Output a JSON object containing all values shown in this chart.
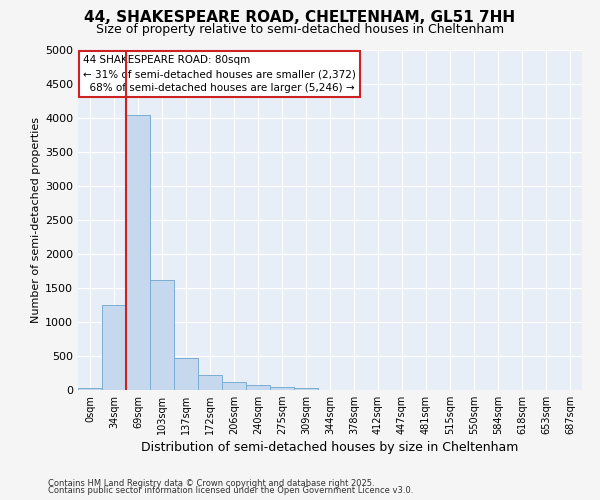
{
  "title_line1": "44, SHAKESPEARE ROAD, CHELTENHAM, GL51 7HH",
  "title_line2": "Size of property relative to semi-detached houses in Cheltenham",
  "xlabel": "Distribution of semi-detached houses by size in Cheltenham",
  "ylabel": "Number of semi-detached properties",
  "bar_labels": [
    "0sqm",
    "34sqm",
    "69sqm",
    "103sqm",
    "137sqm",
    "172sqm",
    "206sqm",
    "240sqm",
    "275sqm",
    "309sqm",
    "344sqm",
    "378sqm",
    "412sqm",
    "447sqm",
    "481sqm",
    "515sqm",
    "550sqm",
    "584sqm",
    "618sqm",
    "653sqm",
    "687sqm"
  ],
  "bar_values": [
    35,
    1250,
    4050,
    1625,
    475,
    225,
    125,
    75,
    50,
    30,
    0,
    0,
    0,
    0,
    0,
    0,
    0,
    0,
    0,
    0,
    0
  ],
  "bar_color": "#c5d8ee",
  "bar_edge_color": "#7aaed0",
  "highlight_color": "#cc2222",
  "vline_x": 1.5,
  "property_size": "80sqm",
  "property_name": "44 SHAKESPEARE ROAD",
  "pct_smaller": 31,
  "pct_larger": 68,
  "count_smaller": 2372,
  "count_larger": 5246,
  "ylim": [
    0,
    5000
  ],
  "yticks": [
    0,
    500,
    1000,
    1500,
    2000,
    2500,
    3000,
    3500,
    4000,
    4500,
    5000
  ],
  "plot_bg_color": "#e8eef8",
  "fig_bg_color": "#f5f5f5",
  "grid_color": "#ffffff",
  "annotation_box_color": "#ffffff",
  "annotation_box_edge": "#cc2222",
  "footer_line1": "Contains HM Land Registry data © Crown copyright and database right 2025.",
  "footer_line2": "Contains public sector information licensed under the Open Government Licence v3.0."
}
